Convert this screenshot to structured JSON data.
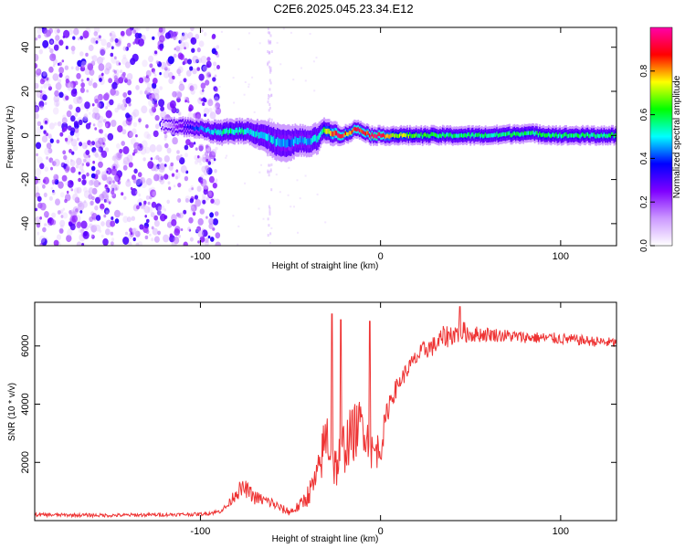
{
  "title": "C2E6.2025.045.23.34.E12",
  "chart_data": [
    {
      "type": "heatmap",
      "name": "spectrogram",
      "xlabel": "Height of straight line (km)",
      "ylabel": "Frequency (Hz)",
      "xlim": [
        -192,
        131
      ],
      "ylim": [
        -50,
        49
      ],
      "xticks": [
        -100,
        0,
        100
      ],
      "yticks": [
        -40,
        -20,
        0,
        20,
        40
      ],
      "colorbar": {
        "label": "Normalized spectral amplitude",
        "range": [
          0,
          1
        ],
        "ticks": [
          "0.0",
          "0.2",
          "0.4",
          "0.6",
          "0.8"
        ],
        "colors": [
          "#ffffff",
          "#cc99ff",
          "#7f00ff",
          "#0000ff",
          "#00ffff",
          "#00ff00",
          "#ffff00",
          "#ff0000",
          "#ff00aa"
        ]
      },
      "noise_region_x": [
        -192,
        -90
      ],
      "isolated_noise_column_x": -62,
      "signal_ridge": {
        "x": [
          -122,
          -110,
          -100,
          -90,
          -84,
          -75,
          -65,
          -58,
          -52,
          -46,
          -40,
          -35,
          -33,
          -30,
          -26,
          -22,
          -18,
          -14,
          -10,
          -6,
          -2,
          5,
          20,
          40,
          60,
          80,
          100,
          131
        ],
        "y": [
          5,
          4,
          3,
          1,
          2,
          2,
          0,
          -3,
          -4,
          -2,
          -3,
          -1,
          2,
          2,
          1,
          0,
          1,
          3,
          2,
          0,
          0,
          0,
          0,
          0,
          0,
          1,
          0,
          0
        ],
        "peak_amplitude": [
          0.05,
          0.3,
          0.45,
          0.55,
          0.6,
          0.55,
          0.5,
          0.5,
          0.45,
          0.5,
          0.5,
          0.55,
          0.6,
          0.75,
          0.9,
          0.95,
          0.8,
          0.95,
          0.9,
          0.98,
          0.98,
          0.8,
          0.65,
          0.6,
          0.6,
          0.6,
          0.6,
          0.6
        ],
        "halfwidth_hz": [
          2,
          3,
          3,
          4,
          4,
          4,
          5,
          6,
          6,
          5,
          5,
          5,
          4,
          4,
          4,
          3,
          3,
          3,
          3,
          3,
          3,
          3,
          3,
          3,
          3,
          3,
          3,
          3
        ]
      }
    },
    {
      "type": "line",
      "name": "snr",
      "xlabel": "Height of straight line (km)",
      "ylabel": "SNR (10 * v/v)",
      "xlim": [
        -192,
        131
      ],
      "ylim": [
        0,
        7500
      ],
      "xticks": [
        -100,
        0,
        100
      ],
      "yticks": [
        2000,
        4000,
        6000
      ],
      "color": "#ee3333",
      "series": [
        {
          "x": [
            -192,
            -150,
            -100,
            -90,
            -85,
            -80,
            -75,
            -70,
            -65,
            -60,
            -55,
            -50,
            -45,
            -40,
            -35,
            -32,
            -30,
            -28,
            -25,
            -20,
            -15,
            -10,
            -8,
            -5,
            0,
            5,
            10,
            15,
            20,
            25,
            30,
            35,
            40,
            45,
            50,
            60,
            80,
            100,
            110,
            120,
            131
          ],
          "y": [
            200,
            180,
            220,
            300,
            500,
            1000,
            1100,
            800,
            700,
            600,
            400,
            300,
            500,
            900,
            1500,
            2400,
            3000,
            2500,
            1800,
            2600,
            3000,
            3400,
            3000,
            2300,
            2500,
            4100,
            4700,
            5200,
            5600,
            5900,
            6000,
            6300,
            6400,
            6500,
            6400,
            6400,
            6300,
            6250,
            6200,
            6150,
            6100
          ],
          "noise_amplitude": [
            60,
            60,
            60,
            80,
            100,
            300,
            300,
            250,
            200,
            200,
            150,
            150,
            200,
            400,
            600,
            900,
            1100,
            1000,
            800,
            1000,
            1000,
            900,
            800,
            700,
            600,
            400,
            300,
            300,
            300,
            350,
            350,
            400,
            400,
            400,
            300,
            250,
            200,
            200,
            180,
            180,
            180
          ]
        }
      ],
      "spikes": [
        {
          "x": -27,
          "y": 7100
        },
        {
          "x": -22,
          "y": 6900
        },
        {
          "x": -6,
          "y": 6850
        },
        {
          "x": 44,
          "y": 7350
        }
      ]
    }
  ]
}
